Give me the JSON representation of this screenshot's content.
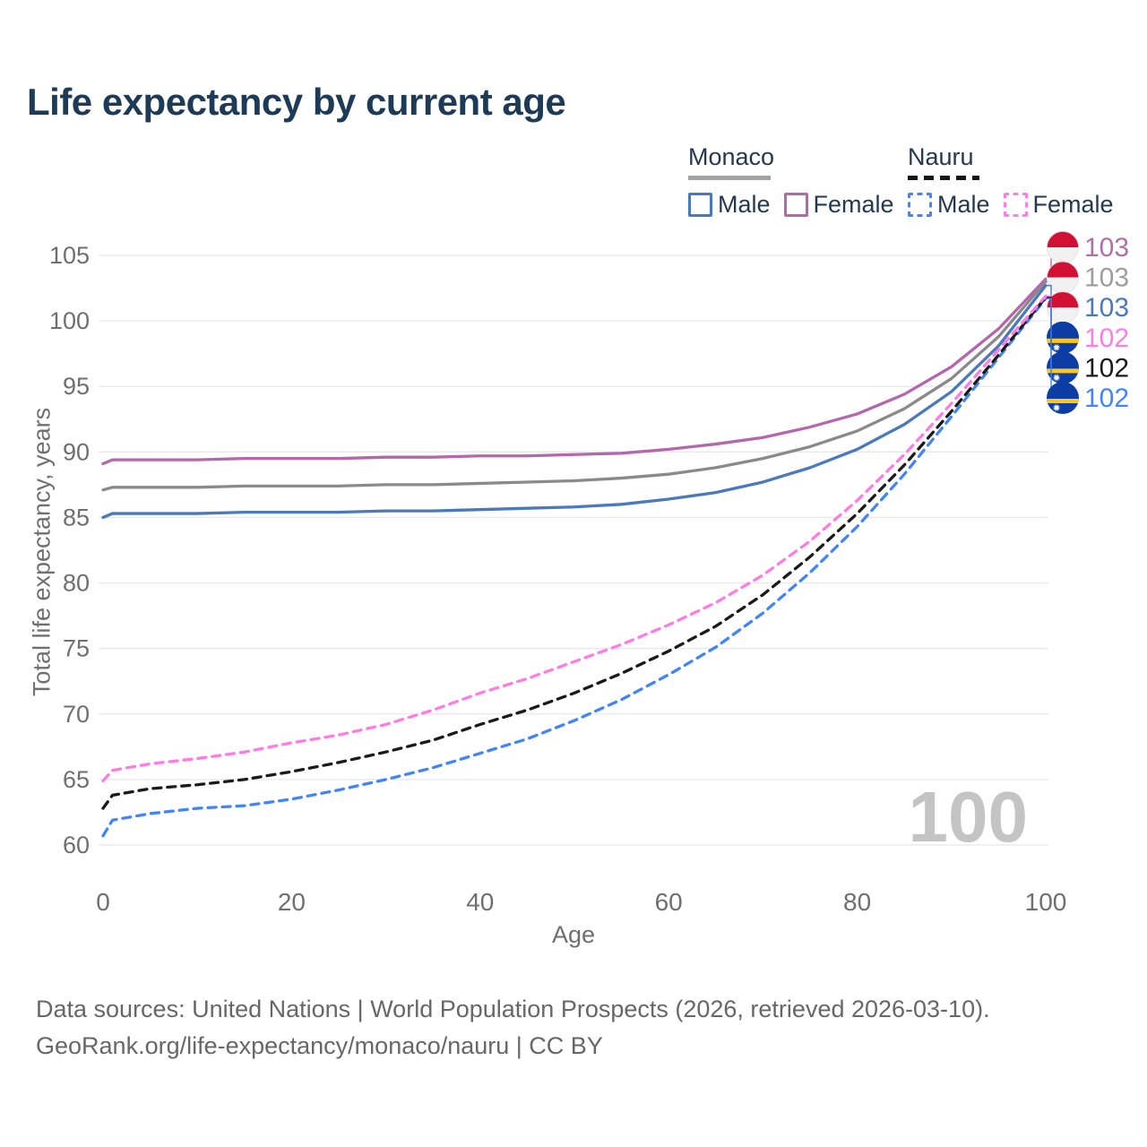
{
  "title": "Life expectancy by current age",
  "legend": {
    "groups": [
      {
        "name": "Monaco",
        "line_style": "solid",
        "items": [
          {
            "label": "Male",
            "color": "#4a79bd"
          },
          {
            "label": "Female",
            "color": "#b567ad"
          }
        ]
      },
      {
        "name": "Nauru",
        "line_style": "dashed",
        "items": [
          {
            "label": "Male",
            "color": "#4285f4"
          },
          {
            "label": "Female",
            "color": "#ff7ce5"
          }
        ]
      }
    ]
  },
  "watermark": "100",
  "footer": {
    "line1": "Data sources: United Nations | World Population Prospects (2026, retrieved 2026-03-10).",
    "line2": "GeoRank.org/life-expectancy/monaco/nauru | CC BY"
  },
  "chart_data": {
    "type": "line",
    "title": "Life expectancy by current age",
    "xlabel": "Age",
    "ylabel": "Total life expectancy, years",
    "xlim": [
      0,
      100
    ],
    "ylim": [
      60,
      105
    ],
    "x_ticks": [
      0,
      20,
      40,
      60,
      80,
      100
    ],
    "y_ticks": [
      60,
      65,
      70,
      75,
      80,
      85,
      90,
      95,
      100,
      105
    ],
    "grid": "horizontal-only",
    "legend_position": "top-right",
    "x": [
      0,
      1,
      5,
      10,
      15,
      20,
      25,
      30,
      35,
      40,
      45,
      50,
      55,
      60,
      65,
      70,
      75,
      80,
      85,
      90,
      95,
      100
    ],
    "series": [
      {
        "name": "Monaco Female",
        "country": "Monaco",
        "sex": "Female",
        "color": "#b567ad",
        "dashed": false,
        "flag": "monaco",
        "end_label": "103",
        "end_label_color": "#b06fa8",
        "values": [
          89.1,
          89.4,
          89.4,
          89.4,
          89.5,
          89.5,
          89.5,
          89.6,
          89.6,
          89.7,
          89.7,
          89.8,
          89.9,
          90.2,
          90.6,
          91.1,
          91.9,
          92.9,
          94.4,
          96.5,
          99.4,
          103.2
        ]
      },
      {
        "name": "Monaco Total",
        "country": "Monaco",
        "sex": "Both",
        "color": "#8a8a8a",
        "dashed": false,
        "flag": "monaco",
        "end_label": "103",
        "end_label_color": "#9e9e9e",
        "values": [
          87.1,
          87.3,
          87.3,
          87.3,
          87.4,
          87.4,
          87.4,
          87.5,
          87.5,
          87.6,
          87.7,
          87.8,
          88.0,
          88.3,
          88.8,
          89.5,
          90.4,
          91.6,
          93.3,
          95.6,
          98.8,
          103.0
        ]
      },
      {
        "name": "Monaco Male",
        "country": "Monaco",
        "sex": "Male",
        "color": "#4a79bd",
        "dashed": false,
        "flag": "monaco",
        "end_label": "103",
        "end_label_color": "#4a79bd",
        "values": [
          85.0,
          85.3,
          85.3,
          85.3,
          85.4,
          85.4,
          85.4,
          85.5,
          85.5,
          85.6,
          85.7,
          85.8,
          86.0,
          86.4,
          86.9,
          87.7,
          88.8,
          90.2,
          92.1,
          94.6,
          98.1,
          102.7
        ]
      },
      {
        "name": "Nauru Female",
        "country": "Nauru",
        "sex": "Female",
        "color": "#ff7ce5",
        "dashed": true,
        "flag": "nauru",
        "end_label": "102",
        "end_label_color": "#ff7ce5",
        "values": [
          64.9,
          65.7,
          66.2,
          66.6,
          67.1,
          67.8,
          68.4,
          69.2,
          70.3,
          71.6,
          72.7,
          74.0,
          75.3,
          76.8,
          78.5,
          80.6,
          83.2,
          86.3,
          89.8,
          93.7,
          97.8,
          101.9
        ]
      },
      {
        "name": "Nauru Total",
        "country": "Nauru",
        "sex": "Both",
        "color": "#1a1a1a",
        "dashed": true,
        "flag": "nauru",
        "end_label": "102",
        "end_label_color": "#1a1a1a",
        "values": [
          62.8,
          63.8,
          64.3,
          64.6,
          65.0,
          65.6,
          66.3,
          67.1,
          68.0,
          69.2,
          70.3,
          71.6,
          73.1,
          74.8,
          76.7,
          79.1,
          82.0,
          85.3,
          89.0,
          93.1,
          97.4,
          101.8
        ]
      },
      {
        "name": "Nauru Male",
        "country": "Nauru",
        "sex": "Male",
        "color": "#4285f4",
        "dashed": true,
        "flag": "nauru",
        "end_label": "102",
        "end_label_color": "#4285f4",
        "values": [
          60.7,
          61.9,
          62.4,
          62.8,
          63.0,
          63.5,
          64.2,
          65.0,
          65.9,
          67.0,
          68.1,
          69.5,
          71.1,
          73.0,
          75.1,
          77.7,
          80.8,
          84.3,
          88.3,
          92.7,
          97.2,
          101.7
        ]
      }
    ],
    "flag_colors": {
      "monaco_red": "#d21034",
      "monaco_white": "#f1f1f1",
      "nauru_blue": "#0b3da4",
      "nauru_yellow": "#ffc61e",
      "nauru_star": "#ffffff"
    },
    "gridline_color": "#e8e8e8",
    "tick_label_color": "#6f6f6f"
  }
}
